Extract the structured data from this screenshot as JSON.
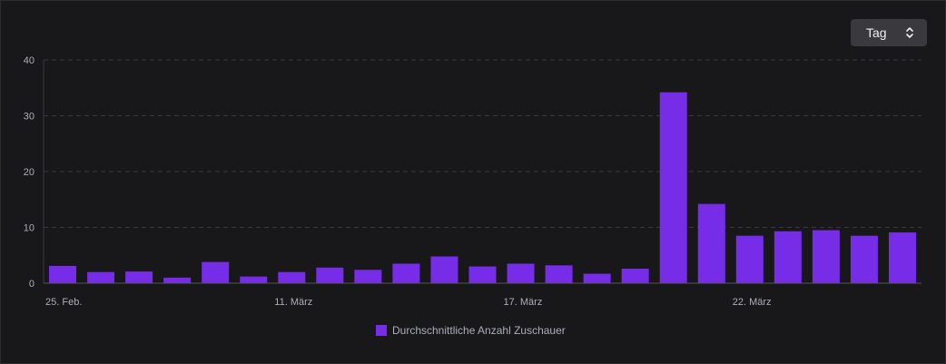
{
  "controls": {
    "period_select": "Tag"
  },
  "colors": {
    "bar": "#772ce8",
    "background": "#18181b",
    "grid": "#3a3a3e",
    "text": "#adadb8"
  },
  "chart_data": {
    "type": "bar",
    "title": "",
    "xlabel": "",
    "ylabel": "",
    "ylim": [
      0,
      40
    ],
    "yticks": [
      0,
      10,
      20,
      30,
      40
    ],
    "grid": true,
    "legend_position": "bottom-center",
    "x_tick_labels": [
      {
        "index": 0,
        "label": "25. Feb."
      },
      {
        "index": 6,
        "label": "11. März"
      },
      {
        "index": 12,
        "label": "17. März"
      },
      {
        "index": 18,
        "label": "22. März"
      }
    ],
    "series": [
      {
        "name": "Durchschnittliche Anzahl Zuschauer",
        "values": [
          3.1,
          2.0,
          2.1,
          1.0,
          3.8,
          1.2,
          2.0,
          2.8,
          2.4,
          3.5,
          4.8,
          3.0,
          3.5,
          3.2,
          1.7,
          2.6,
          34.2,
          14.2,
          8.5,
          9.3,
          9.5,
          8.5,
          9.1
        ]
      }
    ]
  }
}
